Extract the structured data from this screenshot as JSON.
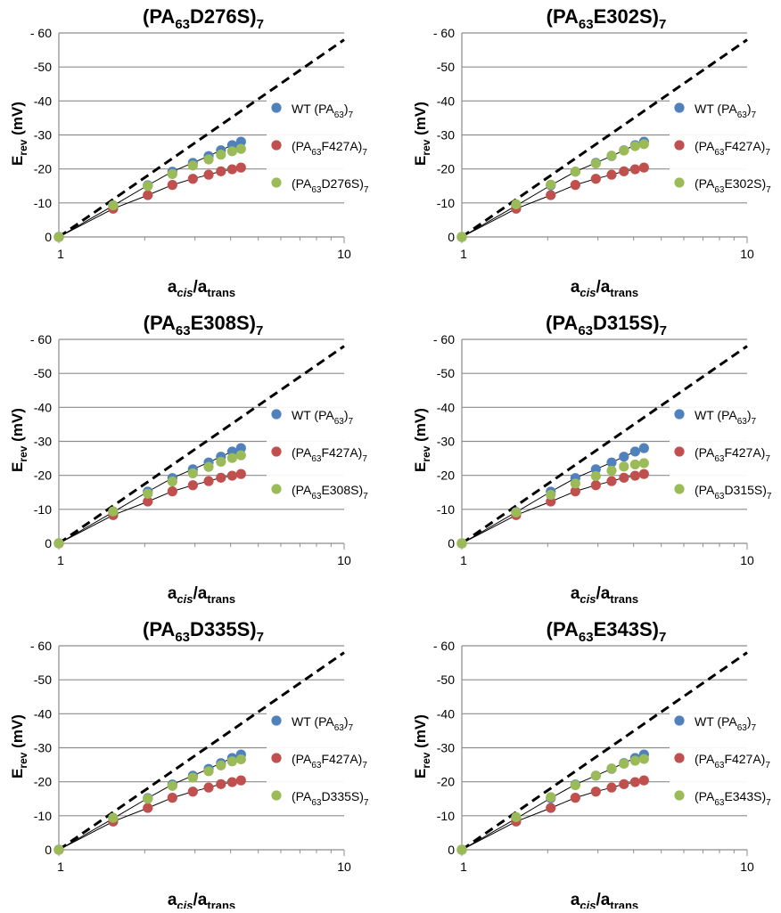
{
  "figure": {
    "theme": {
      "wt_color": "#4f81bd",
      "f427a_color": "#c0504d",
      "mutant_color": "#9bbb59",
      "nernst_line": "dashed black",
      "fit_line": "thin black"
    }
  },
  "chart_data": [
    {
      "type": "scatter",
      "title": {
        "main": "(PA",
        "sub1": "63",
        "mid": "D276S)",
        "sub2": "7"
      },
      "xlabel": {
        "a": "a",
        "cis": "cis",
        "slash": "/a",
        "trans": "trans"
      },
      "ylabel": {
        "e": "E",
        "rev": "rev",
        "unit": " (mV)"
      },
      "x_scale": "log",
      "xlim": [
        1,
        10
      ],
      "ylim": [
        0,
        -60
      ],
      "y_inverted": true,
      "x_tick_labels": [
        "1",
        "10"
      ],
      "y_tick_labels": [
        "0",
        "-10",
        "-20",
        "-30",
        "-40",
        "-50",
        "- 60"
      ],
      "y_ticks": [
        0,
        -10,
        -20,
        -30,
        -40,
        -50,
        -60
      ],
      "nernst": {
        "x": [
          1,
          10
        ],
        "y": [
          0,
          -58
        ]
      },
      "legend_position": "right",
      "series": [
        {
          "name": "WT (PA63)7",
          "legend": {
            "pre": "WT (PA",
            "sub1": "63",
            "post": ")",
            "sub2": "7"
          },
          "color": "#4f81bd",
          "x": [
            1,
            1.55,
            2.05,
            2.5,
            2.95,
            3.35,
            3.7,
            4.05,
            4.35
          ],
          "y": [
            0,
            -9.2,
            -15.2,
            -19.2,
            -21.8,
            -23.8,
            -25.5,
            -27,
            -28
          ]
        },
        {
          "name": "(PA63F427A)7",
          "legend": {
            "pre": "(PA",
            "sub1": "63",
            "post": "F427A)",
            "sub2": "7"
          },
          "color": "#c0504d",
          "x": [
            1,
            1.55,
            2.05,
            2.5,
            2.95,
            3.35,
            3.7,
            4.05,
            4.35
          ],
          "y": [
            0,
            -8.3,
            -12.3,
            -15.3,
            -17.1,
            -18.3,
            -19.3,
            -19.9,
            -20.4
          ]
        },
        {
          "name": "(PA63D276S)7",
          "legend": {
            "pre": "(PA",
            "sub1": "63",
            "post": "D276S)",
            "sub2": "7"
          },
          "color": "#9bbb59",
          "x": [
            1,
            1.55,
            2.05,
            2.5,
            2.95,
            3.35,
            3.7,
            4.05,
            4.35
          ],
          "y": [
            0,
            -9.3,
            -15,
            -18.5,
            -21,
            -22.8,
            -24.2,
            -25.2,
            -25.9
          ]
        }
      ]
    },
    {
      "type": "scatter",
      "title": {
        "main": "(PA",
        "sub1": "63",
        "mid": "E302S)",
        "sub2": "7"
      },
      "xlabel": {
        "a": "a",
        "cis": "cis",
        "slash": "/a",
        "trans": "trans"
      },
      "ylabel": {
        "e": "E",
        "rev": "rev",
        "unit": " (mV)"
      },
      "x_scale": "log",
      "xlim": [
        1,
        10
      ],
      "ylim": [
        0,
        -60
      ],
      "y_inverted": true,
      "x_tick_labels": [
        "1",
        "10"
      ],
      "y_tick_labels": [
        "0",
        "-10",
        "-20",
        "-30",
        "-40",
        "-50",
        "- 60"
      ],
      "y_ticks": [
        0,
        -10,
        -20,
        -30,
        -40,
        -50,
        -60
      ],
      "nernst": {
        "x": [
          1,
          10
        ],
        "y": [
          0,
          -58
        ]
      },
      "legend_position": "right",
      "series": [
        {
          "name": "WT (PA63)7",
          "legend": {
            "pre": "WT (PA",
            "sub1": "63",
            "post": ")",
            "sub2": "7"
          },
          "color": "#4f81bd",
          "x": [
            1,
            1.55,
            2.05,
            2.5,
            2.95,
            3.35,
            3.7,
            4.05,
            4.35
          ],
          "y": [
            0,
            -9.2,
            -15.2,
            -19.2,
            -21.8,
            -23.8,
            -25.5,
            -27,
            -28
          ]
        },
        {
          "name": "(PA63F427A)7",
          "legend": {
            "pre": "(PA",
            "sub1": "63",
            "post": "F427A)",
            "sub2": "7"
          },
          "color": "#c0504d",
          "x": [
            1,
            1.55,
            2.05,
            2.5,
            2.95,
            3.35,
            3.7,
            4.05,
            4.35
          ],
          "y": [
            0,
            -8.3,
            -12.3,
            -15.3,
            -17.1,
            -18.3,
            -19.3,
            -19.9,
            -20.4
          ]
        },
        {
          "name": "(PA63E302S)7",
          "legend": {
            "pre": "(PA",
            "sub1": "63",
            "post": "E302S)",
            "sub2": "7"
          },
          "color": "#9bbb59",
          "x": [
            1,
            1.55,
            2.05,
            2.5,
            2.95,
            3.35,
            3.7,
            4.05,
            4.35
          ],
          "y": [
            0,
            -9.6,
            -15.4,
            -19.2,
            -21.6,
            -23.9,
            -25.4,
            -26.7,
            -27.3
          ]
        }
      ]
    },
    {
      "type": "scatter",
      "title": {
        "main": "(PA",
        "sub1": "63",
        "mid": "E308S)",
        "sub2": "7"
      },
      "xlabel": {
        "a": "a",
        "cis": "cis",
        "slash": "/a",
        "trans": "trans"
      },
      "ylabel": {
        "e": "E",
        "rev": "rev",
        "unit": " (mV)"
      },
      "x_scale": "log",
      "xlim": [
        1,
        10
      ],
      "ylim": [
        0,
        -60
      ],
      "y_inverted": true,
      "x_tick_labels": [
        "1",
        "10"
      ],
      "y_tick_labels": [
        "0",
        "-10",
        "-20",
        "-30",
        "-40",
        "-50",
        "- 60"
      ],
      "y_ticks": [
        0,
        -10,
        -20,
        -30,
        -40,
        -50,
        -60
      ],
      "nernst": {
        "x": [
          1,
          10
        ],
        "y": [
          0,
          -58
        ]
      },
      "legend_position": "right",
      "series": [
        {
          "name": "WT (PA63)7",
          "legend": {
            "pre": "WT (PA",
            "sub1": "63",
            "post": ")",
            "sub2": "7"
          },
          "color": "#4f81bd",
          "x": [
            1,
            1.55,
            2.05,
            2.5,
            2.95,
            3.35,
            3.7,
            4.05,
            4.35
          ],
          "y": [
            0,
            -9.2,
            -15.2,
            -19.2,
            -21.8,
            -23.8,
            -25.5,
            -27,
            -28
          ]
        },
        {
          "name": "(PA63F427A)7",
          "legend": {
            "pre": "(PA",
            "sub1": "63",
            "post": "F427A)",
            "sub2": "7"
          },
          "color": "#c0504d",
          "x": [
            1,
            1.55,
            2.05,
            2.5,
            2.95,
            3.35,
            3.7,
            4.05,
            4.35
          ],
          "y": [
            0,
            -8.3,
            -12.3,
            -15.3,
            -17.1,
            -18.3,
            -19.3,
            -19.9,
            -20.4
          ]
        },
        {
          "name": "(PA63E308S)7",
          "legend": {
            "pre": "(PA",
            "sub1": "63",
            "post": "E308S)",
            "sub2": "7"
          },
          "color": "#9bbb59",
          "x": [
            1,
            1.55,
            2.05,
            2.5,
            2.95,
            3.35,
            3.7,
            4.05,
            4.35
          ],
          "y": [
            0,
            -9.4,
            -14.6,
            -18.2,
            -20.6,
            -22.5,
            -24,
            -25.1,
            -25.9
          ]
        }
      ]
    },
    {
      "type": "scatter",
      "title": {
        "main": "(PA",
        "sub1": "63",
        "mid": "D315S)",
        "sub2": "7"
      },
      "xlabel": {
        "a": "a",
        "cis": "cis",
        "slash": "/a",
        "trans": "trans"
      },
      "ylabel": {
        "e": "E",
        "rev": "rev",
        "unit": " (mV)"
      },
      "x_scale": "log",
      "xlim": [
        1,
        10
      ],
      "ylim": [
        0,
        -60
      ],
      "y_inverted": true,
      "x_tick_labels": [
        "1",
        "10"
      ],
      "y_tick_labels": [
        "0",
        "-10",
        "-20",
        "-30",
        "-40",
        "-50",
        "- 60"
      ],
      "y_ticks": [
        0,
        -10,
        -20,
        -30,
        -40,
        -50,
        -60
      ],
      "nernst": {
        "x": [
          1,
          10
        ],
        "y": [
          0,
          -58
        ]
      },
      "legend_position": "right",
      "series": [
        {
          "name": "WT (PA63)7",
          "legend": {
            "pre": "WT (PA",
            "sub1": "63",
            "post": ")",
            "sub2": "7"
          },
          "color": "#4f81bd",
          "x": [
            1,
            1.55,
            2.05,
            2.5,
            2.95,
            3.35,
            3.7,
            4.05,
            4.35
          ],
          "y": [
            0,
            -9.2,
            -15.2,
            -19.2,
            -21.8,
            -23.8,
            -25.5,
            -27,
            -28
          ]
        },
        {
          "name": "(PA63F427A)7",
          "legend": {
            "pre": "(PA",
            "sub1": "63",
            "post": "F427A)",
            "sub2": "7"
          },
          "color": "#c0504d",
          "x": [
            1,
            1.55,
            2.05,
            2.5,
            2.95,
            3.35,
            3.7,
            4.05,
            4.35
          ],
          "y": [
            0,
            -8.3,
            -12.3,
            -15.3,
            -17.1,
            -18.3,
            -19.3,
            -19.9,
            -20.4
          ]
        },
        {
          "name": "(PA63D315S)7",
          "legend": {
            "pre": "(PA",
            "sub1": "63",
            "post": "D315S)",
            "sub2": "7"
          },
          "color": "#9bbb59",
          "x": [
            1,
            1.55,
            2.05,
            2.5,
            2.95,
            3.35,
            3.7,
            4.05,
            4.35
          ],
          "y": [
            0,
            -9.1,
            -14.3,
            -17.6,
            -19.8,
            -21.4,
            -22.6,
            -23.2,
            -23.6
          ]
        }
      ]
    },
    {
      "type": "scatter",
      "title": {
        "main": "(PA",
        "sub1": "63",
        "mid": "D335S)",
        "sub2": "7"
      },
      "xlabel": {
        "a": "a",
        "cis": "cis",
        "slash": "/a",
        "trans": "trans"
      },
      "ylabel": {
        "e": "E",
        "rev": "rev",
        "unit": " (mV)"
      },
      "x_scale": "log",
      "xlim": [
        1,
        10
      ],
      "ylim": [
        0,
        -60
      ],
      "y_inverted": true,
      "x_tick_labels": [
        "1",
        "10"
      ],
      "y_tick_labels": [
        "0",
        "-10",
        "-20",
        "-30",
        "-40",
        "-50",
        "- 60"
      ],
      "y_ticks": [
        0,
        -10,
        -20,
        -30,
        -40,
        -50,
        -60
      ],
      "nernst": {
        "x": [
          1,
          10
        ],
        "y": [
          0,
          -58
        ]
      },
      "legend_position": "right",
      "series": [
        {
          "name": "WT (PA63)7",
          "legend": {
            "pre": "WT (PA",
            "sub1": "63",
            "post": ")",
            "sub2": "7"
          },
          "color": "#4f81bd",
          "x": [
            1,
            1.55,
            2.05,
            2.5,
            2.95,
            3.35,
            3.7,
            4.05,
            4.35
          ],
          "y": [
            0,
            -9.2,
            -15.2,
            -19.2,
            -21.8,
            -23.8,
            -25.5,
            -27,
            -28
          ]
        },
        {
          "name": "(PA63F427A)7",
          "legend": {
            "pre": "(PA",
            "sub1": "63",
            "post": "F427A)",
            "sub2": "7"
          },
          "color": "#c0504d",
          "x": [
            1,
            1.55,
            2.05,
            2.5,
            2.95,
            3.35,
            3.7,
            4.05,
            4.35
          ],
          "y": [
            0,
            -8.3,
            -12.3,
            -15.3,
            -17.1,
            -18.3,
            -19.3,
            -19.9,
            -20.4
          ]
        },
        {
          "name": "(PA63D335S)7",
          "legend": {
            "pre": "(PA",
            "sub1": "63",
            "post": "D335S)",
            "sub2": "7"
          },
          "color": "#9bbb59",
          "x": [
            1,
            1.55,
            2.05,
            2.5,
            2.95,
            3.35,
            3.7,
            4.05,
            4.35
          ],
          "y": [
            0,
            -9.4,
            -15,
            -18.8,
            -21.2,
            -23.1,
            -24.8,
            -26,
            -26.6
          ]
        }
      ]
    },
    {
      "type": "scatter",
      "title": {
        "main": "(PA",
        "sub1": "63",
        "mid": "E343S)",
        "sub2": "7"
      },
      "xlabel": {
        "a": "a",
        "cis": "cis",
        "slash": "/a",
        "trans": "trans"
      },
      "ylabel": {
        "e": "E",
        "rev": "rev",
        "unit": " (mV)"
      },
      "x_scale": "log",
      "xlim": [
        1,
        10
      ],
      "ylim": [
        0,
        -60
      ],
      "y_inverted": true,
      "x_tick_labels": [
        "1",
        "10"
      ],
      "y_tick_labels": [
        "0",
        "-10",
        "-20",
        "-30",
        "-40",
        "-50",
        "- 60"
      ],
      "y_ticks": [
        0,
        -10,
        -20,
        -30,
        -40,
        -50,
        -60
      ],
      "nernst": {
        "x": [
          1,
          10
        ],
        "y": [
          0,
          -58
        ]
      },
      "legend_position": "right",
      "series": [
        {
          "name": "WT (PA63)7",
          "legend": {
            "pre": "WT (PA",
            "sub1": "63",
            "post": ")",
            "sub2": "7"
          },
          "color": "#4f81bd",
          "x": [
            1,
            1.55,
            2.05,
            2.5,
            2.95,
            3.35,
            3.7,
            4.05,
            4.35
          ],
          "y": [
            0,
            -9.2,
            -15.2,
            -19.2,
            -21.8,
            -23.8,
            -25.5,
            -27,
            -28
          ]
        },
        {
          "name": "(PA63F427A)7",
          "legend": {
            "pre": "(PA",
            "sub1": "63",
            "post": "F427A)",
            "sub2": "7"
          },
          "color": "#c0504d",
          "x": [
            1,
            1.55,
            2.05,
            2.5,
            2.95,
            3.35,
            3.7,
            4.05,
            4.35
          ],
          "y": [
            0,
            -8.3,
            -12.3,
            -15.3,
            -17.1,
            -18.3,
            -19.3,
            -19.9,
            -20.4
          ]
        },
        {
          "name": "(PA63E343S)7",
          "legend": {
            "pre": "(PA",
            "sub1": "63",
            "post": "E343S)",
            "sub2": "7"
          },
          "color": "#9bbb59",
          "x": [
            1,
            1.55,
            2.05,
            2.5,
            2.95,
            3.35,
            3.7,
            4.05,
            4.35
          ],
          "y": [
            0,
            -9.6,
            -15.5,
            -19,
            -21.8,
            -23.9,
            -25.3,
            -26.2,
            -26.7
          ]
        }
      ]
    }
  ]
}
